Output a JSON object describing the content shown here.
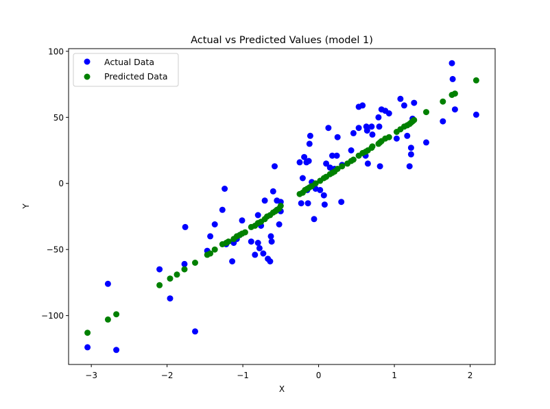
{
  "chart_data": {
    "type": "scatter",
    "title": "Actual vs Predicted Values (model 1)",
    "xlabel": "X",
    "ylabel": "Y",
    "xlim": [
      -3.3,
      2.33
    ],
    "ylim": [
      -137,
      102
    ],
    "xticks": [
      -3,
      -2,
      -1,
      0,
      1,
      2
    ],
    "xtick_labels": [
      "−3",
      "−2",
      "−1",
      "0",
      "1",
      "2"
    ],
    "yticks": [
      -100,
      -50,
      0,
      50,
      100
    ],
    "ytick_labels": [
      "−100",
      "−50",
      "0",
      "50",
      "100"
    ],
    "grid": false,
    "legend": "top-left",
    "series": [
      {
        "name": "Actual Data",
        "color": "#0000ff",
        "points": [
          [
            -3.05,
            -124
          ],
          [
            -2.78,
            -76
          ],
          [
            -2.67,
            -126
          ],
          [
            -2.1,
            -65
          ],
          [
            -1.96,
            -87
          ],
          [
            -1.77,
            -61
          ],
          [
            -1.76,
            -33
          ],
          [
            -1.63,
            -112
          ],
          [
            -1.47,
            -51
          ],
          [
            -1.43,
            -40
          ],
          [
            -1.37,
            -31
          ],
          [
            -1.27,
            -20
          ],
          [
            -1.24,
            -4
          ],
          [
            -1.22,
            -46
          ],
          [
            -1.14,
            -59
          ],
          [
            -1.12,
            -45
          ],
          [
            -1.08,
            -42
          ],
          [
            -1.04,
            -39
          ],
          [
            -1.01,
            -28
          ],
          [
            -0.89,
            -44
          ],
          [
            -0.84,
            -54
          ],
          [
            -0.8,
            -45
          ],
          [
            -0.8,
            -24
          ],
          [
            -0.78,
            -49
          ],
          [
            -0.76,
            -32
          ],
          [
            -0.73,
            -53
          ],
          [
            -0.71,
            -13
          ],
          [
            -0.67,
            -57
          ],
          [
            -0.64,
            -59
          ],
          [
            -0.63,
            -40
          ],
          [
            -0.62,
            -44
          ],
          [
            -0.6,
            -6
          ],
          [
            -0.58,
            13
          ],
          [
            -0.55,
            -13
          ],
          [
            -0.52,
            -31
          ],
          [
            -0.5,
            -14
          ],
          [
            -0.5,
            -21
          ],
          [
            -0.25,
            16
          ],
          [
            -0.23,
            -15
          ],
          [
            -0.21,
            4
          ],
          [
            -0.19,
            20
          ],
          [
            -0.16,
            16
          ],
          [
            -0.15,
            -5
          ],
          [
            -0.14,
            -15
          ],
          [
            -0.13,
            17
          ],
          [
            -0.12,
            30
          ],
          [
            -0.11,
            36
          ],
          [
            -0.09,
            1
          ],
          [
            -0.06,
            -27
          ],
          [
            -0.04,
            -4
          ],
          [
            0.02,
            -5
          ],
          [
            0.07,
            -9
          ],
          [
            0.08,
            -16
          ],
          [
            0.1,
            15
          ],
          [
            0.13,
            42
          ],
          [
            0.15,
            12
          ],
          [
            0.18,
            21
          ],
          [
            0.21,
            11
          ],
          [
            0.24,
            21
          ],
          [
            0.25,
            35
          ],
          [
            0.3,
            -14
          ],
          [
            0.31,
            14
          ],
          [
            0.43,
            25
          ],
          [
            0.46,
            38
          ],
          [
            0.53,
            42
          ],
          [
            0.53,
            58
          ],
          [
            0.58,
            59
          ],
          [
            0.62,
            21
          ],
          [
            0.63,
            43
          ],
          [
            0.64,
            40
          ],
          [
            0.65,
            15
          ],
          [
            0.7,
            43
          ],
          [
            0.71,
            37
          ],
          [
            0.79,
            50
          ],
          [
            0.8,
            43
          ],
          [
            0.81,
            13
          ],
          [
            0.83,
            56
          ],
          [
            0.88,
            55
          ],
          [
            0.93,
            53
          ],
          [
            1.03,
            34
          ],
          [
            1.08,
            64
          ],
          [
            1.13,
            59
          ],
          [
            1.17,
            36
          ],
          [
            1.2,
            13
          ],
          [
            1.22,
            22
          ],
          [
            1.22,
            27
          ],
          [
            1.24,
            49
          ],
          [
            1.26,
            61
          ],
          [
            1.42,
            31
          ],
          [
            1.64,
            47
          ],
          [
            1.76,
            91
          ],
          [
            1.77,
            79
          ],
          [
            1.8,
            56
          ],
          [
            2.08,
            52
          ]
        ]
      },
      {
        "name": "Predicted Data",
        "color": "#008000",
        "points": [
          [
            -3.05,
            -113
          ],
          [
            -2.78,
            -103
          ],
          [
            -2.67,
            -99
          ],
          [
            -2.1,
            -77
          ],
          [
            -1.96,
            -72
          ],
          [
            -1.87,
            -69
          ],
          [
            -1.77,
            -65
          ],
          [
            -1.63,
            -60
          ],
          [
            -1.47,
            -54
          ],
          [
            -1.43,
            -53
          ],
          [
            -1.37,
            -50
          ],
          [
            -1.27,
            -46
          ],
          [
            -1.22,
            -45
          ],
          [
            -1.19,
            -44
          ],
          [
            -1.12,
            -42
          ],
          [
            -1.08,
            -40
          ],
          [
            -1.04,
            -39
          ],
          [
            -1.01,
            -38
          ],
          [
            -0.97,
            -37
          ],
          [
            -0.89,
            -33
          ],
          [
            -0.84,
            -32
          ],
          [
            -0.8,
            -30
          ],
          [
            -0.76,
            -29
          ],
          [
            -0.71,
            -27
          ],
          [
            -0.68,
            -25
          ],
          [
            -0.64,
            -24
          ],
          [
            -0.6,
            -22
          ],
          [
            -0.57,
            -21
          ],
          [
            -0.55,
            -20
          ],
          [
            -0.52,
            -19
          ],
          [
            -0.5,
            -17
          ],
          [
            -0.25,
            -8
          ],
          [
            -0.21,
            -7
          ],
          [
            -0.18,
            -5
          ],
          [
            -0.15,
            -4
          ],
          [
            -0.12,
            -3
          ],
          [
            -0.09,
            -2
          ],
          [
            -0.04,
            0
          ],
          [
            0.02,
            2
          ],
          [
            0.07,
            4
          ],
          [
            0.1,
            5
          ],
          [
            0.15,
            7
          ],
          [
            0.18,
            8
          ],
          [
            0.21,
            9
          ],
          [
            0.25,
            11
          ],
          [
            0.31,
            13
          ],
          [
            0.38,
            15
          ],
          [
            0.43,
            17
          ],
          [
            0.46,
            18
          ],
          [
            0.53,
            21
          ],
          [
            0.58,
            23
          ],
          [
            0.62,
            24
          ],
          [
            0.65,
            25
          ],
          [
            0.7,
            27
          ],
          [
            0.71,
            28
          ],
          [
            0.79,
            30
          ],
          [
            0.81,
            31
          ],
          [
            0.83,
            32
          ],
          [
            0.88,
            34
          ],
          [
            0.93,
            35
          ],
          [
            1.03,
            39
          ],
          [
            1.08,
            41
          ],
          [
            1.13,
            43
          ],
          [
            1.17,
            44
          ],
          [
            1.2,
            45
          ],
          [
            1.22,
            46
          ],
          [
            1.24,
            47
          ],
          [
            1.26,
            48
          ],
          [
            1.42,
            54
          ],
          [
            1.64,
            62
          ],
          [
            1.76,
            67
          ],
          [
            1.8,
            68
          ],
          [
            2.08,
            78
          ]
        ]
      }
    ]
  }
}
